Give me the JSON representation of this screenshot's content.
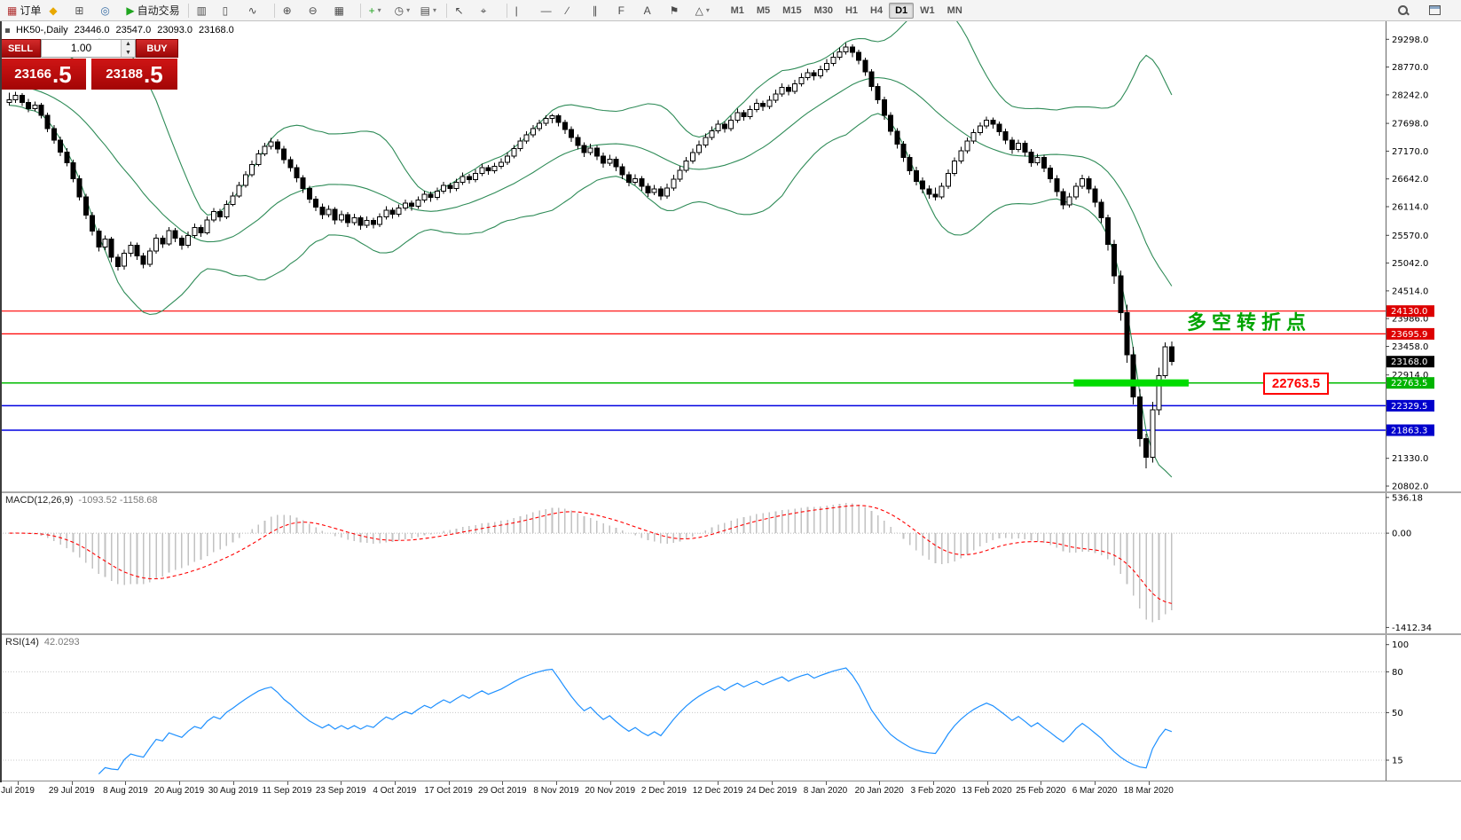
{
  "toolbar": {
    "buttons": [
      {
        "name": "new-order-button",
        "icon": "▦",
        "icon_color": "#b03030",
        "label": "订单"
      },
      {
        "name": "mql-market-button",
        "icon": "◆",
        "icon_color": "#e8a800"
      },
      {
        "name": "new-chart-button",
        "icon": "⊞",
        "icon_color": "#555555"
      },
      {
        "name": "help-button",
        "icon": "◎",
        "icon_color": "#3a6ea5"
      },
      {
        "name": "auto-trading-button",
        "icon": "▶",
        "icon_color": "#1fa51f",
        "label": "自动交易"
      },
      {
        "sep": true
      },
      {
        "name": "bar-chart-mode-button",
        "icon": "▥"
      },
      {
        "name": "candlestick-mode-button",
        "icon": "▯"
      },
      {
        "name": "line-chart-mode-button",
        "icon": "∿"
      },
      {
        "sep": true
      },
      {
        "name": "zoom-in-button",
        "icon": "⊕"
      },
      {
        "name": "zoom-out-button",
        "icon": "⊖"
      },
      {
        "name": "tile-windows-button",
        "icon": "▦"
      },
      {
        "sep": true
      },
      {
        "name": "indicators-button",
        "icon": "+",
        "icon_color": "#1fa51f",
        "caret": true
      },
      {
        "name": "periods-button",
        "icon": "◷",
        "caret": true
      },
      {
        "name": "templates-button",
        "icon": "▤",
        "caret": true
      },
      {
        "sep": true
      },
      {
        "name": "cursor-button",
        "icon": "↖"
      },
      {
        "name": "crosshair-button",
        "icon": "⌖"
      },
      {
        "sep": true
      },
      {
        "name": "vertical-line-button",
        "icon": "|"
      },
      {
        "name": "horizontal-line-button",
        "icon": "—"
      },
      {
        "name": "trendline-button",
        "icon": "∕"
      },
      {
        "name": "channel-button",
        "icon": "∥"
      },
      {
        "name": "fibonacci-button",
        "icon": "F"
      },
      {
        "name": "text-button",
        "icon": "A"
      },
      {
        "name": "arrows-button",
        "icon": "⚑"
      },
      {
        "name": "shapes-button",
        "icon": "△",
        "caret": true
      }
    ],
    "timeframes": [
      "M1",
      "M5",
      "M15",
      "M30",
      "H1",
      "H4",
      "D1",
      "W1",
      "MN"
    ],
    "active_timeframe": "D1",
    "right_buttons": [
      {
        "name": "search-button",
        "kind": "search"
      },
      {
        "name": "panels-button",
        "kind": "panel"
      }
    ]
  },
  "chart_header": {
    "symbol_period": "HK50-,Daily",
    "open": "23446.0",
    "high": "23547.0",
    "low": "23093.0",
    "close": "23168.0"
  },
  "one_click_panel": {
    "sell_label": "SELL",
    "buy_label": "BUY",
    "lot_value": "1.00",
    "sell_price_base": "23166",
    "sell_price_big": ".5",
    "buy_price_base": "23188",
    "buy_price_big": ".5"
  },
  "annotations": {
    "turning_point_text": "多空转折点",
    "support_price_label": "22763.5"
  },
  "chart_data": {
    "type": "candlestick",
    "symbol": "HK50-",
    "period": "Daily",
    "ylim": [
      20700,
      29640
    ],
    "price_ticks": [
      29298,
      28770,
      28242,
      27698,
      27170,
      26642,
      26114,
      25570,
      25042,
      24514,
      23986,
      23458,
      22914,
      21330,
      20802
    ],
    "date_ticks": [
      "Jul 2019",
      "29 Jul 2019",
      "8 Aug 2019",
      "20 Aug 2019",
      "30 Aug 2019",
      "11 Sep 2019",
      "23 Sep 2019",
      "4 Oct 2019",
      "17 Oct 2019",
      "29 Oct 2019",
      "8 Nov 2019",
      "20 Nov 2019",
      "2 Dec 2019",
      "12 Dec 2019",
      "24 Dec 2019",
      "8 Jan 2020",
      "20 Jan 2020",
      "3 Feb 2020",
      "13 Feb 2020",
      "25 Feb 2020",
      "6 Mar 2020",
      "18 Mar 2020"
    ],
    "current_price": {
      "value": 23168.0,
      "label": "23168.0",
      "badge_color": "#000000"
    },
    "hlines": [
      {
        "price": 24130.0,
        "label": "24130.0",
        "color": "#ff0000",
        "badge_color": "#dd0000",
        "width": 1.2
      },
      {
        "price": 23695.9,
        "label": "23695.9",
        "color": "#ff0000",
        "badge_color": "#dd0000",
        "width": 1.2
      },
      {
        "price": 22763.5,
        "label": "22763.5",
        "color": "#00bb00",
        "badge_color": "#00b400",
        "width": 1.5
      },
      {
        "price": 22329.5,
        "label": "22329.5",
        "color": "#0000e0",
        "badge_color": "#0000cc",
        "width": 1.5
      },
      {
        "price": 21863.3,
        "label": "21863.3",
        "color": "#0000e0",
        "badge_color": "#0000cc",
        "width": 1.5
      }
    ],
    "support_bar": {
      "price": 22763.5,
      "from_index": 167,
      "to_index": 185,
      "thickness": 8,
      "color": "#00dc00"
    },
    "indicators": {
      "bollinger": {
        "period": 20,
        "deviation": 2,
        "color": "#2E8B57"
      },
      "macd": {
        "label": "MACD(12,26,9)",
        "values_text": "-1093.52 -1158.68",
        "fast": 12,
        "slow": 26,
        "signal": 9,
        "ylim": [
          -1500,
          600
        ],
        "ticks": [
          536.18,
          0.0,
          -1412.34
        ],
        "histogram_color": "#c2c2c2",
        "signal_color": "#ff0000"
      },
      "rsi": {
        "label": "RSI(14)",
        "value_text": "42.0293",
        "period": 14,
        "ylim": [
          0,
          107
        ],
        "ticks": [
          100,
          80,
          50,
          15
        ],
        "levels": [
          80,
          50,
          15
        ],
        "color": "#1E90FF"
      }
    },
    "candles": [
      [
        28100,
        28280,
        28040,
        28150
      ],
      [
        28150,
        28300,
        28090,
        28230
      ],
      [
        28230,
        28270,
        28030,
        28100
      ],
      [
        28100,
        28160,
        27910,
        27980
      ],
      [
        27980,
        28110,
        27930,
        28050
      ],
      [
        28050,
        28090,
        27790,
        27850
      ],
      [
        27850,
        27900,
        27530,
        27600
      ],
      [
        27600,
        27670,
        27310,
        27380
      ],
      [
        27380,
        27450,
        27080,
        27150
      ],
      [
        27150,
        27230,
        26880,
        26950
      ],
      [
        26950,
        27010,
        26580,
        26650
      ],
      [
        26650,
        26710,
        26230,
        26300
      ],
      [
        26300,
        26360,
        25880,
        25950
      ],
      [
        25950,
        26010,
        25570,
        25650
      ],
      [
        25650,
        25700,
        25260,
        25350
      ],
      [
        25350,
        25570,
        25290,
        25500
      ],
      [
        25500,
        25540,
        25060,
        25150
      ],
      [
        25150,
        25210,
        24900,
        24980
      ],
      [
        24980,
        25300,
        24920,
        25230
      ],
      [
        25230,
        25450,
        25160,
        25380
      ],
      [
        25380,
        25430,
        25100,
        25180
      ],
      [
        25180,
        25240,
        24940,
        25020
      ],
      [
        25020,
        25330,
        24970,
        25270
      ],
      [
        25270,
        25590,
        25220,
        25520
      ],
      [
        25520,
        25570,
        25330,
        25410
      ],
      [
        25410,
        25730,
        25370,
        25660
      ],
      [
        25660,
        25710,
        25440,
        25520
      ],
      [
        25520,
        25570,
        25300,
        25380
      ],
      [
        25380,
        25640,
        25330,
        25570
      ],
      [
        25570,
        25790,
        25520,
        25720
      ],
      [
        25720,
        25770,
        25540,
        25620
      ],
      [
        25620,
        25930,
        25580,
        25860
      ],
      [
        25860,
        26090,
        25820,
        26020
      ],
      [
        26020,
        26070,
        25840,
        25920
      ],
      [
        25920,
        26230,
        25880,
        26160
      ],
      [
        26160,
        26390,
        26120,
        26320
      ],
      [
        26320,
        26590,
        26280,
        26520
      ],
      [
        26520,
        26790,
        26480,
        26720
      ],
      [
        26720,
        26990,
        26680,
        26920
      ],
      [
        26920,
        27190,
        26880,
        27120
      ],
      [
        27120,
        27330,
        27080,
        27260
      ],
      [
        27260,
        27420,
        27200,
        27350
      ],
      [
        27350,
        27400,
        27130,
        27210
      ],
      [
        27210,
        27270,
        26930,
        27010
      ],
      [
        27010,
        27070,
        26780,
        26860
      ],
      [
        26860,
        26920,
        26580,
        26660
      ],
      [
        26660,
        26710,
        26380,
        26460
      ],
      [
        26460,
        26510,
        26180,
        26260
      ],
      [
        26260,
        26320,
        26030,
        26110
      ],
      [
        26110,
        26170,
        25880,
        25960
      ],
      [
        25960,
        26140,
        25910,
        26060
      ],
      [
        26060,
        26110,
        25780,
        25860
      ],
      [
        25860,
        26040,
        25810,
        25960
      ],
      [
        25960,
        26010,
        25730,
        25810
      ],
      [
        25810,
        25980,
        25760,
        25900
      ],
      [
        25900,
        25950,
        25680,
        25760
      ],
      [
        25760,
        25930,
        25710,
        25850
      ],
      [
        25850,
        25900,
        25700,
        25780
      ],
      [
        25780,
        25990,
        25730,
        25920
      ],
      [
        25920,
        26120,
        25870,
        26050
      ],
      [
        26050,
        26100,
        25890,
        25970
      ],
      [
        25970,
        26160,
        25920,
        26090
      ],
      [
        26090,
        26250,
        26040,
        26180
      ],
      [
        26180,
        26230,
        26040,
        26120
      ],
      [
        26120,
        26310,
        26070,
        26240
      ],
      [
        26240,
        26420,
        26190,
        26350
      ],
      [
        26350,
        26400,
        26210,
        26290
      ],
      [
        26290,
        26480,
        26240,
        26410
      ],
      [
        26410,
        26590,
        26360,
        26520
      ],
      [
        26520,
        26570,
        26380,
        26460
      ],
      [
        26460,
        26650,
        26410,
        26580
      ],
      [
        26580,
        26760,
        26530,
        26690
      ],
      [
        26690,
        26740,
        26550,
        26630
      ],
      [
        26630,
        26820,
        26580,
        26750
      ],
      [
        26750,
        26930,
        26700,
        26860
      ],
      [
        26860,
        26910,
        26720,
        26800
      ],
      [
        26800,
        26950,
        26750,
        26880
      ],
      [
        26880,
        27030,
        26830,
        26960
      ],
      [
        26960,
        27150,
        26910,
        27080
      ],
      [
        27080,
        27290,
        27030,
        27220
      ],
      [
        27220,
        27430,
        27170,
        27360
      ],
      [
        27360,
        27550,
        27310,
        27480
      ],
      [
        27480,
        27670,
        27430,
        27600
      ],
      [
        27600,
        27770,
        27550,
        27700
      ],
      [
        27700,
        27850,
        27650,
        27790
      ],
      [
        27790,
        27880,
        27700,
        27840
      ],
      [
        27840,
        27880,
        27640,
        27720
      ],
      [
        27720,
        27770,
        27500,
        27580
      ],
      [
        27580,
        27640,
        27350,
        27430
      ],
      [
        27430,
        27490,
        27200,
        27280
      ],
      [
        27280,
        27340,
        27060,
        27140
      ],
      [
        27140,
        27310,
        27090,
        27230
      ],
      [
        27230,
        27280,
        27000,
        27080
      ],
      [
        27080,
        27140,
        26860,
        26940
      ],
      [
        26940,
        27100,
        26890,
        27020
      ],
      [
        27020,
        27070,
        26790,
        26870
      ],
      [
        26870,
        26930,
        26640,
        26720
      ],
      [
        26720,
        26780,
        26500,
        26580
      ],
      [
        26580,
        26730,
        26530,
        26650
      ],
      [
        26650,
        26700,
        26420,
        26500
      ],
      [
        26500,
        26560,
        26300,
        26380
      ],
      [
        26380,
        26530,
        26330,
        26450
      ],
      [
        26450,
        26500,
        26240,
        26320
      ],
      [
        26320,
        26550,
        26270,
        26470
      ],
      [
        26470,
        26720,
        26420,
        26640
      ],
      [
        26640,
        26890,
        26590,
        26810
      ],
      [
        26810,
        27060,
        26760,
        26980
      ],
      [
        26980,
        27220,
        26930,
        27140
      ],
      [
        27140,
        27370,
        27090,
        27290
      ],
      [
        27290,
        27510,
        27240,
        27430
      ],
      [
        27430,
        27640,
        27380,
        27560
      ],
      [
        27560,
        27760,
        27510,
        27680
      ],
      [
        27680,
        27730,
        27520,
        27600
      ],
      [
        27600,
        27840,
        27550,
        27760
      ],
      [
        27760,
        27980,
        27710,
        27900
      ],
      [
        27900,
        27950,
        27750,
        27830
      ],
      [
        27830,
        28040,
        27780,
        27960
      ],
      [
        27960,
        28160,
        27910,
        28080
      ],
      [
        28080,
        28130,
        27940,
        28020
      ],
      [
        28020,
        28220,
        27970,
        28140
      ],
      [
        28140,
        28340,
        28090,
        28260
      ],
      [
        28260,
        28460,
        28210,
        28380
      ],
      [
        28380,
        28430,
        28230,
        28310
      ],
      [
        28310,
        28530,
        28260,
        28450
      ],
      [
        28450,
        28650,
        28400,
        28570
      ],
      [
        28570,
        28740,
        28520,
        28660
      ],
      [
        28660,
        28710,
        28520,
        28600
      ],
      [
        28600,
        28800,
        28550,
        28720
      ],
      [
        28720,
        28920,
        28670,
        28840
      ],
      [
        28840,
        29040,
        28790,
        28960
      ],
      [
        28960,
        29140,
        28910,
        29060
      ],
      [
        29060,
        29230,
        29010,
        29150
      ],
      [
        29150,
        29200,
        28960,
        29050
      ],
      [
        29050,
        29100,
        28820,
        28900
      ],
      [
        28900,
        28950,
        28600,
        28680
      ],
      [
        28680,
        28730,
        28320,
        28400
      ],
      [
        28400,
        28460,
        28070,
        28150
      ],
      [
        28150,
        28210,
        27770,
        27850
      ],
      [
        27850,
        27910,
        27470,
        27550
      ],
      [
        27550,
        27610,
        27220,
        27300
      ],
      [
        27300,
        27360,
        26970,
        27050
      ],
      [
        27050,
        27110,
        26720,
        26800
      ],
      [
        26800,
        26870,
        26520,
        26600
      ],
      [
        26600,
        26670,
        26370,
        26450
      ],
      [
        26450,
        26520,
        26270,
        26350
      ],
      [
        26350,
        26480,
        26230,
        26300
      ],
      [
        26300,
        26570,
        26260,
        26500
      ],
      [
        26500,
        26820,
        26450,
        26750
      ],
      [
        26750,
        27050,
        26700,
        26980
      ],
      [
        26980,
        27250,
        26930,
        27180
      ],
      [
        27180,
        27430,
        27130,
        27360
      ],
      [
        27360,
        27590,
        27310,
        27520
      ],
      [
        27520,
        27720,
        27470,
        27650
      ],
      [
        27650,
        27830,
        27600,
        27760
      ],
      [
        27760,
        27810,
        27600,
        27680
      ],
      [
        27680,
        27730,
        27460,
        27540
      ],
      [
        27540,
        27600,
        27300,
        27380
      ],
      [
        27380,
        27440,
        27120,
        27200
      ],
      [
        27200,
        27390,
        27150,
        27320
      ],
      [
        27320,
        27370,
        27070,
        27150
      ],
      [
        27150,
        27210,
        26870,
        26950
      ],
      [
        26950,
        27120,
        26900,
        27050
      ],
      [
        27050,
        27100,
        26770,
        26850
      ],
      [
        26850,
        26910,
        26570,
        26650
      ],
      [
        26650,
        26710,
        26310,
        26400
      ],
      [
        26400,
        26460,
        26060,
        26150
      ],
      [
        26150,
        26380,
        26100,
        26300
      ],
      [
        26300,
        26570,
        26250,
        26500
      ],
      [
        26500,
        26720,
        26450,
        26650
      ],
      [
        26650,
        26700,
        26370,
        26450
      ],
      [
        26450,
        26510,
        26110,
        26200
      ],
      [
        26200,
        26260,
        25800,
        25900
      ],
      [
        25900,
        25960,
        25280,
        25400
      ],
      [
        25400,
        25480,
        24650,
        24800
      ],
      [
        24800,
        24900,
        23950,
        24100
      ],
      [
        24100,
        24250,
        23150,
        23300
      ],
      [
        23300,
        23450,
        22350,
        22500
      ],
      [
        22500,
        22650,
        21550,
        21700
      ],
      [
        21700,
        21800,
        21139,
        21350
      ],
      [
        21350,
        22400,
        21250,
        22250
      ],
      [
        22250,
        23050,
        22150,
        22900
      ],
      [
        22900,
        23530,
        22850,
        23446
      ],
      [
        23446,
        23547,
        23093,
        23168
      ]
    ]
  }
}
